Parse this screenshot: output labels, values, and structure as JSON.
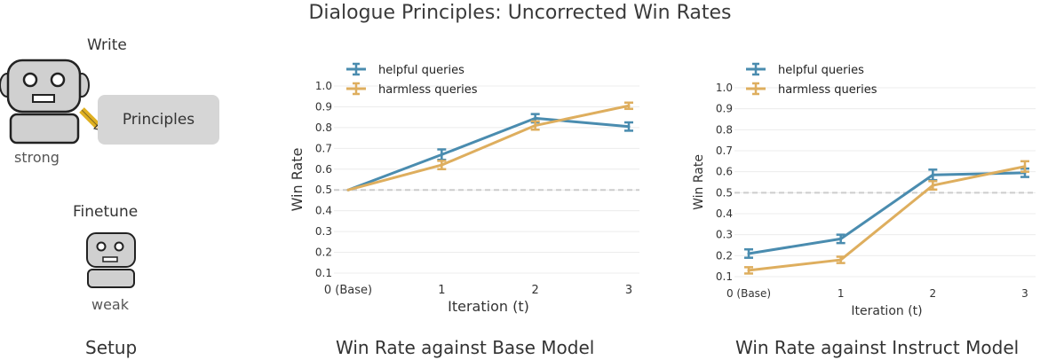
{
  "title": "Dialogue Principles: Uncorrected Win Rates",
  "setup": {
    "write_label": "Write",
    "principles_label": "Principles",
    "strong_label": "strong",
    "finetune_label": "Finetune",
    "weak_label": "weak",
    "caption": "Setup",
    "robot_icon": "robot-icon",
    "pencil_icon": "pencil-icon"
  },
  "colors": {
    "helpful": "#4a8caf",
    "harmless": "#deae5e",
    "reference": "#cccccc"
  },
  "chart_data": [
    {
      "type": "line",
      "caption": "Win Rate against Base Model",
      "xlabel": "Iteration (t)",
      "ylabel": "Win Rate",
      "x_ticks": [
        "0 (Base)",
        "1",
        "2",
        "3"
      ],
      "y_ticks": [
        "0.1",
        "0.2",
        "0.3",
        "0.4",
        "0.5",
        "0.6",
        "0.7",
        "0.8",
        "0.9",
        "1.0"
      ],
      "ylim": [
        0.1,
        1.0
      ],
      "reference_line": 0.5,
      "legend_position": "top-left",
      "series": [
        {
          "name": "helpful queries",
          "x": [
            0,
            1,
            2,
            3
          ],
          "values": [
            0.5,
            0.67,
            0.845,
            0.805
          ],
          "errors": [
            0,
            0.025,
            0.02,
            0.02
          ]
        },
        {
          "name": "harmless queries",
          "x": [
            0,
            1,
            2,
            3
          ],
          "values": [
            0.5,
            0.62,
            0.81,
            0.905
          ],
          "errors": [
            0,
            0.02,
            0.02,
            0.015
          ]
        }
      ]
    },
    {
      "type": "line",
      "caption": "Win Rate against Instruct Model",
      "xlabel": "Iteration (t)",
      "ylabel": "Win Rate",
      "x_ticks": [
        "0 (Base)",
        "1",
        "2",
        "3"
      ],
      "y_ticks": [
        "0.1",
        "0.2",
        "0.3",
        "0.4",
        "0.5",
        "0.6",
        "0.7",
        "0.8",
        "0.9",
        "1.0"
      ],
      "ylim": [
        0.1,
        1.0
      ],
      "reference_line": 0.5,
      "legend_position": "top-left",
      "series": [
        {
          "name": "helpful queries",
          "x": [
            0,
            1,
            2,
            3
          ],
          "values": [
            0.21,
            0.28,
            0.585,
            0.595
          ],
          "errors": [
            0.02,
            0.02,
            0.025,
            0.02
          ]
        },
        {
          "name": "harmless queries",
          "x": [
            0,
            1,
            2,
            3
          ],
          "values": [
            0.13,
            0.18,
            0.535,
            0.625
          ],
          "errors": [
            0.015,
            0.015,
            0.02,
            0.025
          ]
        }
      ]
    }
  ]
}
